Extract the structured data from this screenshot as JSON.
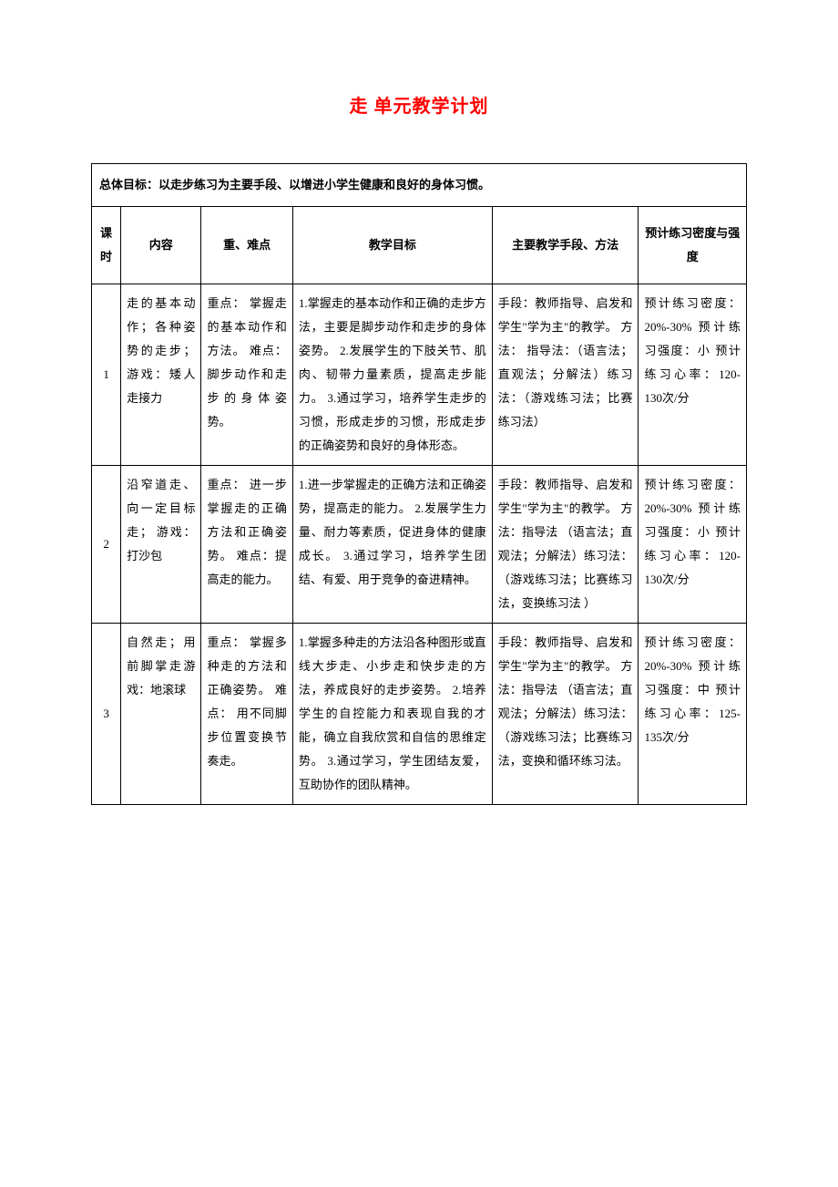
{
  "title": "走 单元教学计划",
  "overall_goal_label": "总体目标：",
  "overall_goal_text": "以走步练习为主要手段、以增进小学生健康和良好的身体习惯。",
  "headers": {
    "period": "课时",
    "content": "内容",
    "keypoints": "重、难点",
    "goals": "教学目标",
    "methods": "主要教学手段、方法",
    "intensity": "预计练习密度与强度"
  },
  "rows": [
    {
      "period": "1",
      "content": "走的基本动作；各种姿势的走步；游戏：矮人走接力",
      "keypoints": "重点：\n掌握走的基本动作和方法。\n难点：\n脚步动作和走步的身体姿势。",
      "goals": "1.掌握走的基本动作和正确的走步方法，主要是脚步动作和走步的身体姿势。\n2.发展学生的下肢关节、肌肉、韧带力量素质，提高走步能力。\n3.通过学习，培养学生走步的习惯，形成走步的习惯，形成走步的正确姿势和良好的身体形态。",
      "methods": "手段：教师指导、启发和学生\"学为主\"的教学。\n方法： 指导法：（语言法；直观法；分解法）练习法：（游戏练习法；比赛练习法）",
      "intensity": "预计练习密度：20%-30%\n预计练习强度：小\n预计练习心率：120-130次/分"
    },
    {
      "period": "2",
      "content": "沿窄道走、向一定目标走； 游戏：打沙包",
      "keypoints": "重点：\n进一步掌握走的正确方法和正确姿势。\n难点：提高走的能力。",
      "goals": "1.进一步掌握走的正确方法和正确姿势，提高走的能力。\n2.发展学生力量、耐力等素质，促进身体的健康成长。\n3.通过学习，培养学生团结、有爱、用于竞争的奋进精神。",
      "methods": "手段：教师指导、启发和学生\"学为主\"的教学。\n方法：指导法 （语言法；直观法；分解法）练习法：（游戏练习法；比赛练习法，变换练习法 ）",
      "intensity": "预计练习密度：20%-30%\n预计练习强度：小\n预计练习心率：120-130次/分"
    },
    {
      "period": "3",
      "content": "自然走；用前脚掌走游戏：地滚球",
      "keypoints": "重点：\n掌握多种走的方法和正确姿势。\n难点：\n用不同脚步位置变换节奏走。",
      "goals": "1.掌握多种走的方法沿各种图形或直线大步走、小步走和快步走的方法，养成良好的走步姿势。\n2.培养学生的自控能力和表现自我的才能，确立自我欣赏和自信的思维定势。\n3.通过学习，学生团结友爱，互助协作的团队精神。",
      "methods": "手段：教师指导、启发和学生\"学为主\"的教学。\n方法：指导法 （语言法；直观法；分解法）练习法：（游戏练习法；比赛练习法，变换和循环练习法。",
      "intensity": "预计练习密度：20%-30%\n预计练习强度：中\n预计练习心率：125-135次/分"
    }
  ],
  "styling": {
    "title_color": "#ff0000",
    "title_fontsize": 20,
    "body_fontsize": 13,
    "border_color": "#000000",
    "background_color": "#ffffff",
    "line_height": 2.0,
    "col_widths": {
      "period": 32,
      "content": 88,
      "keypoints": 100,
      "goals": 218,
      "methods": 160,
      "intensity": 118
    }
  }
}
